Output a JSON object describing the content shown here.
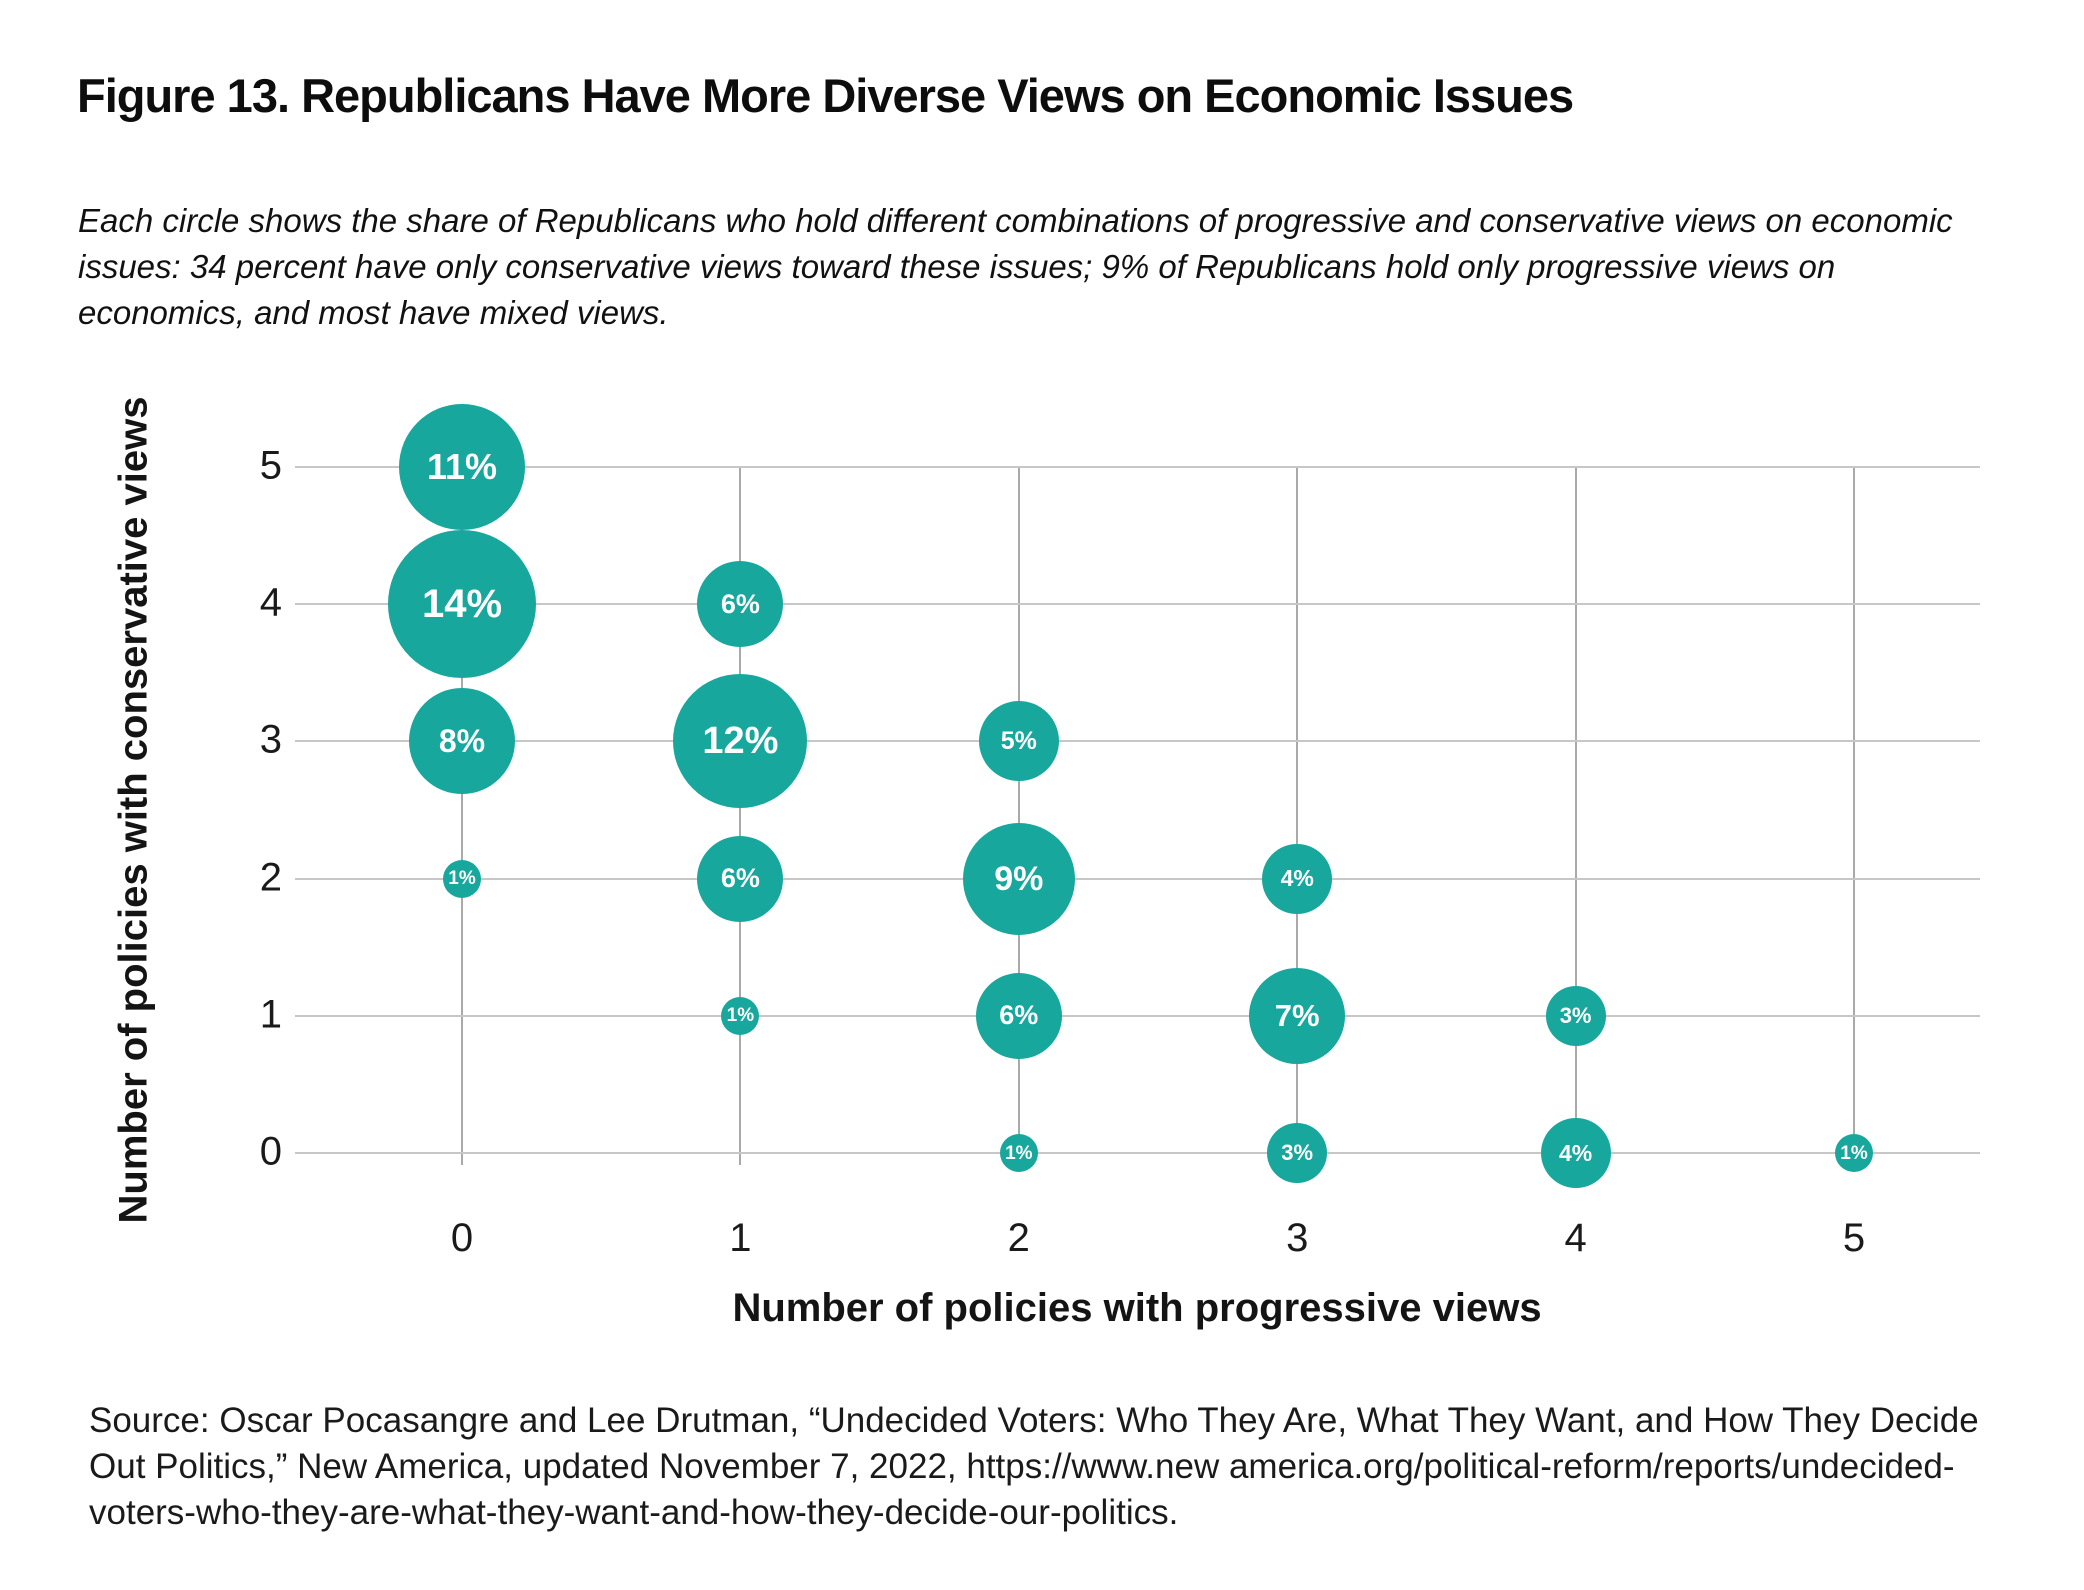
{
  "figure": {
    "title": "Figure 13. Republicans Have More Diverse Views on Economic Issues",
    "subtitle_lines": [
      "Each circle shows the share of Republicans who hold different combinations of progressive and conservative views on economic",
      "issues: 34 percent have only conservative views toward these issues; 9% of Republicans hold only progressive views on",
      "economics, and most have mixed views."
    ],
    "source_lines": [
      "Source: Oscar Pocasangre and Lee Drutman, “Undecided Voters: Who They Are, What They Want, and How They Decide",
      "Out Politics,” New America, updated November 7, 2022, https://www.new america.org/political-reform/reports/undecided-",
      "voters-who-they-are-what-they-want-and-how-they-decide-our-politics."
    ]
  },
  "chart_data": {
    "type": "scatter",
    "subtype": "bubble",
    "title": "Figure 13. Republicans Have More Diverse Views on Economic Issues",
    "xlabel": "Number of policies with progressive views",
    "ylabel": "Number of policies with conservative views",
    "x_ticks": [
      0,
      1,
      2,
      3,
      4,
      5
    ],
    "y_ticks": [
      0,
      1,
      2,
      3,
      4,
      5
    ],
    "xlim": [
      -0.6,
      5.45
    ],
    "ylim": [
      -0.55,
      5.65
    ],
    "grid": true,
    "legend": false,
    "bubble_color": "#18a79d",
    "bubble_label_color": "#ffffff",
    "size_encoding": "area proportional to percent share",
    "points": [
      {
        "x": 0,
        "y": 5,
        "value": 11,
        "label": "11%"
      },
      {
        "x": 0,
        "y": 4,
        "value": 14,
        "label": "14%"
      },
      {
        "x": 0,
        "y": 3,
        "value": 8,
        "label": "8%"
      },
      {
        "x": 0,
        "y": 2,
        "value": 1,
        "label": "1%"
      },
      {
        "x": 1,
        "y": 4,
        "value": 6,
        "label": "6%"
      },
      {
        "x": 1,
        "y": 3,
        "value": 12,
        "label": "12%"
      },
      {
        "x": 1,
        "y": 2,
        "value": 6,
        "label": "6%"
      },
      {
        "x": 1,
        "y": 1,
        "value": 1,
        "label": "1%"
      },
      {
        "x": 2,
        "y": 3,
        "value": 5,
        "label": "5%"
      },
      {
        "x": 2,
        "y": 2,
        "value": 9,
        "label": "9%"
      },
      {
        "x": 2,
        "y": 1,
        "value": 6,
        "label": "6%"
      },
      {
        "x": 2,
        "y": 0,
        "value": 1,
        "label": "1%"
      },
      {
        "x": 3,
        "y": 2,
        "value": 4,
        "label": "4%"
      },
      {
        "x": 3,
        "y": 1,
        "value": 7,
        "label": "7%"
      },
      {
        "x": 3,
        "y": 0,
        "value": 3,
        "label": "3%"
      },
      {
        "x": 4,
        "y": 1,
        "value": 3,
        "label": "3%"
      },
      {
        "x": 4,
        "y": 0,
        "value": 4,
        "label": "4%"
      },
      {
        "x": 5,
        "y": 0,
        "value": 1,
        "label": "1%"
      }
    ]
  }
}
